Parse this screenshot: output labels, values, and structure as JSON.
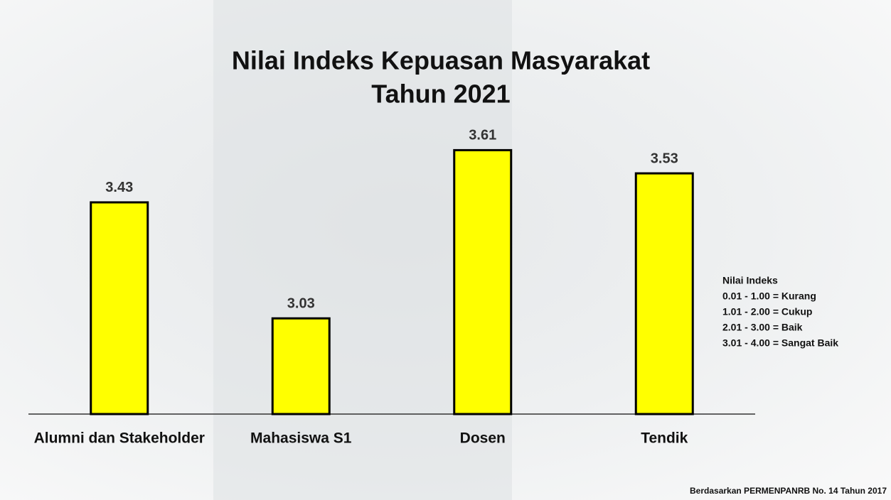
{
  "chart_data": {
    "type": "bar",
    "title": "Nilai Indeks Kepuasan Masyarakat",
    "subtitle": "Tahun 2021",
    "categories": [
      "Alumni dan Stakeholder",
      "Mahasiswa S1",
      "Dosen",
      "Tendik"
    ],
    "values": [
      3.43,
      3.03,
      3.61,
      3.53
    ],
    "color": "#ffff00",
    "ylim": [
      2.7,
      3.9
    ],
    "annotations": [
      "Nilai Indeks",
      "0.01 - 1.00 = Kurang",
      "1.01 - 2.00 = Cukup",
      "2.01 - 3.00 = Baik",
      "3.01 - 4.00 = Sangat Baik"
    ],
    "footnote": "Berdasarkan PERMENPANRB No. 14 Tahun 2017"
  }
}
